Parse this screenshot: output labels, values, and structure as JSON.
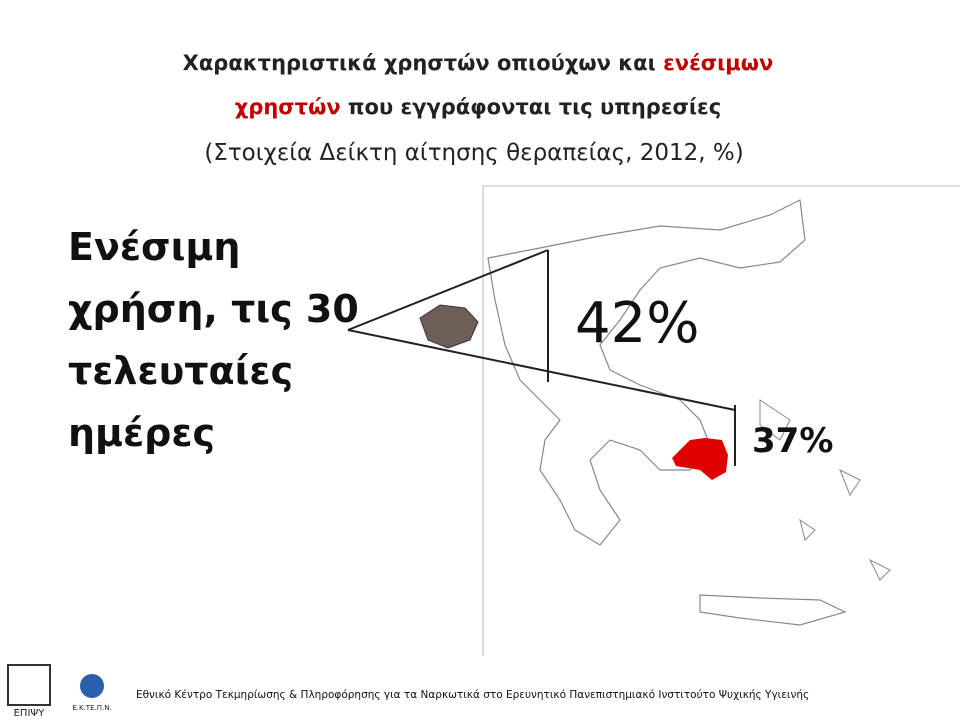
{
  "title": {
    "lines": [
      [
        "Χαρακτηριστικά χρηστών οπιούχων και ",
        "ενέσιμων"
      ],
      [
        "χρηστών",
        " που εγγράφονται τις υπηρεσίες"
      ]
    ],
    "subtitle": "(Στοιχεία Δείκτη αίτησης θεραπείας, 2012, %)",
    "highlight_color": "#c00000"
  },
  "label": {
    "lines": [
      "Ενέσιμη",
      "χρήση, τις 30",
      "τελευταίες",
      "ημέρες"
    ]
  },
  "callouts": {
    "national": "42%",
    "attica": "37%"
  },
  "logos": {
    "epipsy": "ΕΠΙΨΥ",
    "ektepn": "Ε.Κ.ΤΕ.Π.Ν."
  },
  "footer": "Εθνικό Κέντρο Τεκμηρίωσης & Πληροφόρησης για τα Ναρκωτικά στο Ερευνητικό Πανεπιστημιακό Ινστιτούτο Ψυχικής Υγιεινής"
}
